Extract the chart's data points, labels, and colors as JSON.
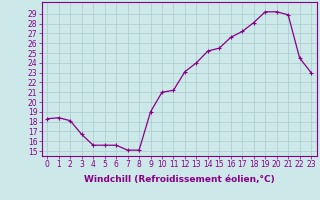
{
  "x": [
    0,
    1,
    2,
    3,
    4,
    5,
    6,
    7,
    8,
    9,
    10,
    11,
    12,
    13,
    14,
    15,
    16,
    17,
    18,
    19,
    20,
    21,
    22,
    23
  ],
  "y": [
    18.3,
    18.4,
    18.1,
    16.7,
    15.6,
    15.6,
    15.6,
    15.1,
    15.1,
    19.0,
    21.0,
    21.2,
    23.1,
    24.0,
    25.2,
    25.5,
    26.6,
    27.2,
    28.1,
    29.2,
    29.2,
    28.9,
    24.5,
    23.0
  ],
  "line_color": "#880088",
  "marker": "+",
  "marker_size": 3.5,
  "marker_lw": 0.8,
  "bg_color": "#cce8e8",
  "grid_color": "#aacccc",
  "xlabel": "Windchill (Refroidissement éolien,°C)",
  "ylabel_ticks": [
    15,
    16,
    17,
    18,
    19,
    20,
    21,
    22,
    23,
    24,
    25,
    26,
    27,
    28,
    29
  ],
  "ylim": [
    14.5,
    30.2
  ],
  "xlim": [
    -0.5,
    23.5
  ],
  "xlabel_fontsize": 6.5,
  "tick_fontsize": 5.5,
  "axis_color": "#880088",
  "spine_color": "#880088",
  "linewidth": 0.9
}
